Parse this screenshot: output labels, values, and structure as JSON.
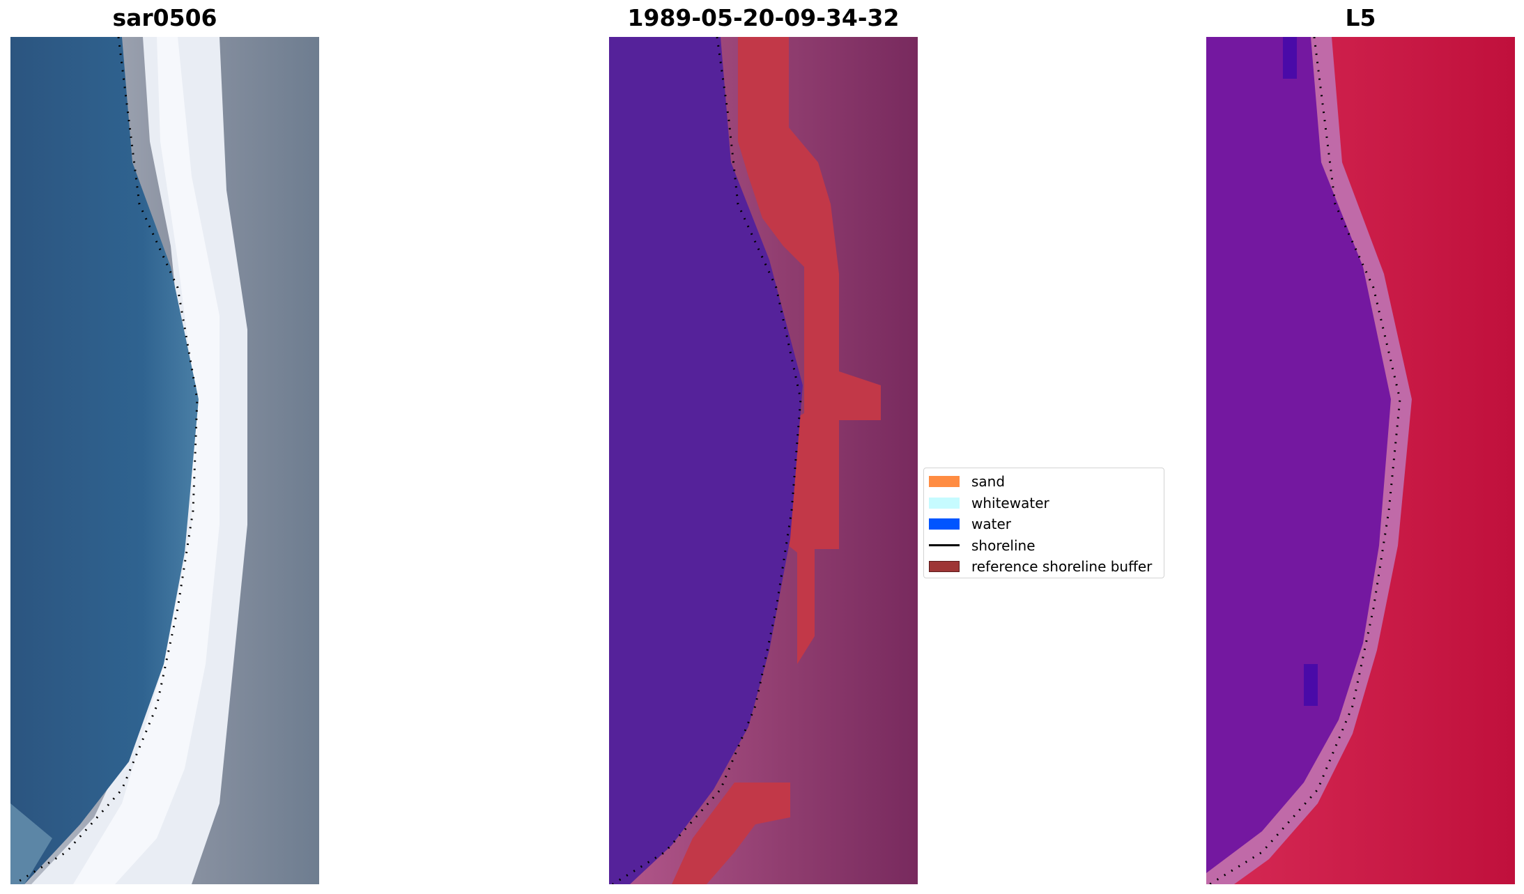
{
  "panels": [
    {
      "id": "rgb",
      "title": "sar0506"
    },
    {
      "id": "classified",
      "title": "1989-05-20-09-34-32"
    },
    {
      "id": "index",
      "title": "L5"
    }
  ],
  "legend": {
    "items": [
      {
        "label": "sand",
        "color": "#ff8c42",
        "kind": "patch"
      },
      {
        "label": "whitewater",
        "color": "#c6fbff",
        "kind": "patch"
      },
      {
        "label": "water",
        "color": "#0055ff",
        "kind": "patch"
      },
      {
        "label": "shoreline",
        "color": "#000000",
        "kind": "line"
      },
      {
        "label": "reference shoreline buffer",
        "color": "#9e3535",
        "kind": "patch"
      }
    ]
  },
  "colors": {
    "rgb_water": "#2f5f86",
    "rgb_whitewater": "#eef2f8",
    "rgb_land": "#8a8f9c",
    "class_water": "#55229a",
    "class_buffer": "#c23848",
    "class_land": "#9a4a7c",
    "index_water": "#7418a0",
    "index_land": "#c0103c",
    "shoreline": "#000000"
  }
}
